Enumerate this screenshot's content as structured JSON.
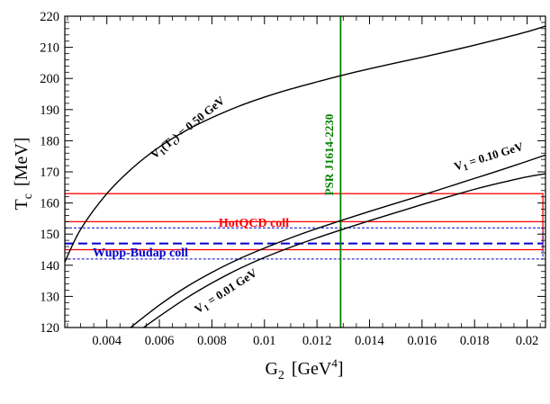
{
  "chart_data": {
    "type": "line",
    "xlabel": "G",
    "xlabel_sub": "2",
    "xlabel_unit": "[GeV",
    "xlabel_unit_sup": "4",
    "xlabel_unit_close": "]",
    "ylabel": "T",
    "ylabel_sub": "c",
    "ylabel_unit": "[MeV]",
    "xlim": [
      0.0024,
      0.0207
    ],
    "ylim": [
      120,
      220
    ],
    "x_ticks": [
      0.004,
      0.006,
      0.008,
      0.01,
      0.012,
      0.014,
      0.016,
      0.018,
      0.02
    ],
    "x_tick_labels": [
      "0.004",
      "0.006",
      "0.008",
      "0.01",
      "0.012",
      "0.014",
      "0.016",
      "0.018",
      "0.02"
    ],
    "y_ticks": [
      120,
      130,
      140,
      150,
      160,
      170,
      180,
      190,
      200,
      210,
      220
    ],
    "y_tick_labels": [
      "120",
      "130",
      "140",
      "150",
      "160",
      "170",
      "180",
      "190",
      "200",
      "210",
      "220"
    ],
    "grid": false,
    "series": [
      {
        "color": "#000000",
        "x": [
          0.0024,
          0.003,
          0.004,
          0.005,
          0.006,
          0.007,
          0.008,
          0.009,
          0.01,
          0.011,
          0.012,
          0.013,
          0.014,
          0.015,
          0.016,
          0.017,
          0.018,
          0.019,
          0.02,
          0.0207
        ],
        "y": [
          141.0,
          151.5,
          163.0,
          171.4,
          178.0,
          183.2,
          187.4,
          191.0,
          194.0,
          196.6,
          198.9,
          201.1,
          203.1,
          205.0,
          206.8,
          208.7,
          210.7,
          212.8,
          215.0,
          216.8
        ]
      },
      {
        "color": "#000000",
        "x": [
          0.0049,
          0.006,
          0.007,
          0.008,
          0.009,
          0.01,
          0.011,
          0.012,
          0.013,
          0.014,
          0.015,
          0.016,
          0.017,
          0.018,
          0.019,
          0.02,
          0.0207
        ],
        "y": [
          120,
          127.2,
          132.9,
          137.7,
          141.9,
          145.5,
          148.8,
          151.8,
          154.6,
          157.3,
          159.9,
          162.5,
          165.2,
          167.9,
          170.6,
          173.4,
          175.4
        ]
      },
      {
        "color": "#000000",
        "x": [
          0.0054,
          0.006,
          0.007,
          0.008,
          0.009,
          0.01,
          0.011,
          0.012,
          0.013,
          0.014,
          0.015,
          0.016,
          0.017,
          0.018,
          0.019,
          0.02,
          0.0207
        ],
        "y": [
          120,
          123.6,
          129.3,
          134.3,
          138.7,
          142.5,
          145.8,
          148.8,
          151.6,
          154.3,
          156.9,
          159.5,
          162.0,
          164.4,
          166.5,
          168.4,
          169.4
        ]
      }
    ],
    "bands": [
      {
        "label": "HotQCD coll",
        "ymin": 145,
        "ymax": 163,
        "center": 154,
        "color": "#ff0000",
        "style": "solid"
      },
      {
        "label": "Wupp-Budap coll",
        "ymin": 142,
        "ymax": 152,
        "center": 147,
        "color": "#0000cc",
        "style": "dashed"
      }
    ],
    "vline": {
      "x": 0.0129,
      "label": "PSR J1614-2230",
      "color": "#008000"
    },
    "annotations": [
      {
        "text": "V",
        "sub": "1",
        "mid": "(T",
        "mid_sub": "c",
        "tail": ") = 0.50 GeV"
      },
      {
        "text": "V",
        "sub": "1",
        "tail": " = 0.10 GeV"
      },
      {
        "text": "V",
        "sub": "1",
        "tail": " = 0.01 GeV"
      }
    ]
  }
}
